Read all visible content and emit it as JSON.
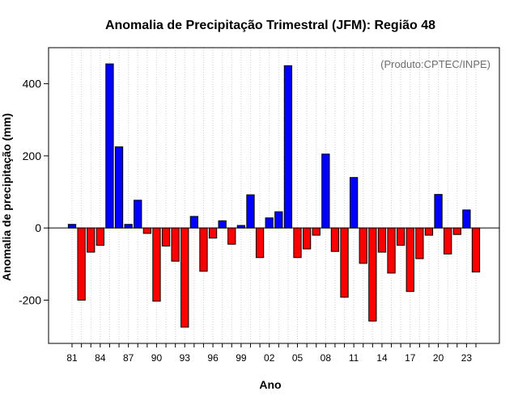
{
  "chart_data": {
    "type": "bar",
    "title": "Anomalia de Precipitação Trimestral (JFM): Região 48",
    "xlabel": "Ano",
    "ylabel": "Anomalia de precipitação (mm)",
    "annotation": "(Produto:CPTEC/INPE)",
    "ylim": [
      -320,
      500
    ],
    "yticks": [
      -200,
      0,
      200,
      400
    ],
    "categories": [
      "81",
      "82",
      "83",
      "84",
      "85",
      "86",
      "87",
      "88",
      "89",
      "90",
      "91",
      "92",
      "93",
      "94",
      "95",
      "96",
      "97",
      "98",
      "99",
      "00",
      "01",
      "02",
      "03",
      "04",
      "05",
      "06",
      "07",
      "08",
      "09",
      "10",
      "11",
      "12",
      "13",
      "14",
      "15",
      "16",
      "17",
      "18",
      "19",
      "20",
      "21",
      "22",
      "23",
      "24"
    ],
    "xtick_labels": [
      "81",
      "84",
      "87",
      "90",
      "93",
      "96",
      "99",
      "02",
      "05",
      "08",
      "11",
      "14",
      "17",
      "20",
      "23"
    ],
    "values": [
      10,
      -200,
      -67,
      -48,
      455,
      225,
      10,
      77,
      -15,
      -203,
      -50,
      -92,
      -275,
      32,
      -120,
      -28,
      20,
      -45,
      7,
      92,
      -82,
      28,
      45,
      450,
      -82,
      -58,
      -20,
      205,
      -65,
      -192,
      140,
      -98,
      -258,
      -67,
      -125,
      -48,
      -176,
      -85,
      -20,
      93,
      -72,
      -18,
      50,
      -122
    ],
    "positive_color": "#0000ff",
    "negative_color": "#ff0000",
    "grid": "vertical dotted"
  }
}
